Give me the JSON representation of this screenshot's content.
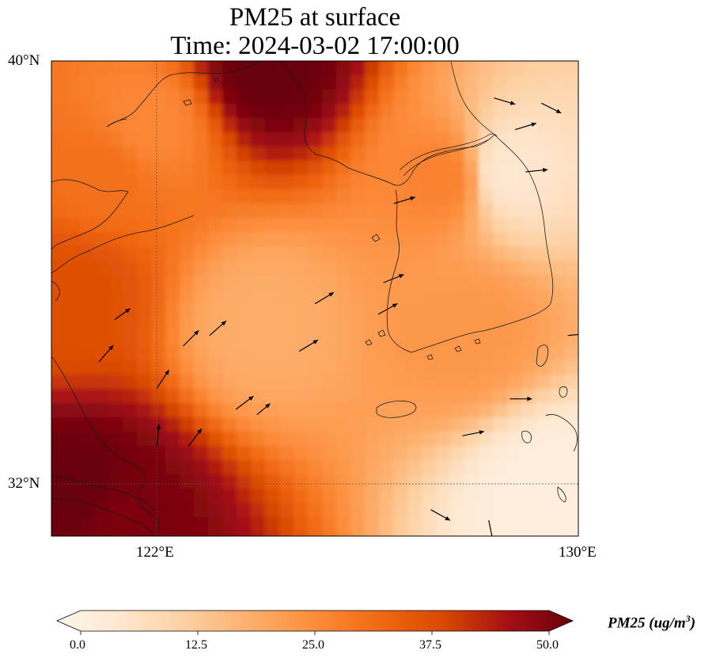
{
  "title": {
    "line1": "PM25 at surface",
    "line2": "Time: 2024-03-02 17:00:00"
  },
  "axes": {
    "lat_labels": [
      "40°N",
      "32°N"
    ],
    "lon_labels": [
      "122°E",
      "130°E"
    ]
  },
  "colorbar": {
    "label_main": "PM25 (ug/m",
    "label_exp": "3",
    "label_end": ")",
    "ticks": [
      "0.0",
      "12.5",
      "25.0",
      "37.5",
      "50.0"
    ],
    "min": 0,
    "max": 50,
    "colors": [
      "#fff5eb",
      "#fee6ce",
      "#fdd0a2",
      "#fdae6b",
      "#fd8d3c",
      "#f16913",
      "#d94801",
      "#a50f15",
      "#67000d"
    ]
  },
  "chart_data": {
    "type": "heatmap",
    "title": "PM25 at surface — Time: 2024-03-02 17:00:00",
    "variable": "PM25 (ug/m3)",
    "lon_range": [
      120,
      130
    ],
    "lat_range": [
      31,
      40
    ],
    "gridlines": {
      "lon": [
        122
      ],
      "lat": [
        32
      ]
    },
    "value_range": [
      0,
      50
    ],
    "field_samples": [
      {
        "lon": 120.5,
        "lat": 31.8,
        "value": 50
      },
      {
        "lon": 121.3,
        "lat": 31.3,
        "value": 48
      },
      {
        "lon": 120.4,
        "lat": 35.6,
        "value": 36
      },
      {
        "lon": 121.0,
        "lat": 37.9,
        "value": 30
      },
      {
        "lon": 124.1,
        "lat": 39.9,
        "value": 50
      },
      {
        "lon": 121.8,
        "lat": 38.8,
        "value": 26
      },
      {
        "lon": 124.0,
        "lat": 35.0,
        "value": 19
      },
      {
        "lon": 128.6,
        "lat": 37.9,
        "value": 6
      },
      {
        "lon": 127.5,
        "lat": 37.8,
        "value": 27
      },
      {
        "lon": 127.8,
        "lat": 34.9,
        "value": 23
      },
      {
        "lon": 129.5,
        "lat": 31.8,
        "value": 3
      }
    ],
    "wind_vectors": [
      {
        "lon": 120.9,
        "lat": 34.3,
        "u": 0.7,
        "v": 0.8
      },
      {
        "lon": 121.2,
        "lat": 35.1,
        "u": 0.7,
        "v": 0.5
      },
      {
        "lon": 122.5,
        "lat": 34.6,
        "u": 0.8,
        "v": 0.8
      },
      {
        "lon": 123.0,
        "lat": 34.8,
        "u": 0.8,
        "v": 0.7
      },
      {
        "lon": 124.7,
        "lat": 34.5,
        "u": 1.0,
        "v": 0.6
      },
      {
        "lon": 123.5,
        "lat": 33.4,
        "u": 0.8,
        "v": 0.6
      },
      {
        "lon": 122.6,
        "lat": 32.7,
        "u": 0.6,
        "v": 0.8
      },
      {
        "lon": 122.0,
        "lat": 33.8,
        "u": 0.6,
        "v": 0.9
      },
      {
        "lon": 122.0,
        "lat": 32.7,
        "u": 0.1,
        "v": 1.0
      },
      {
        "lon": 123.9,
        "lat": 33.3,
        "u": 0.6,
        "v": 0.5
      },
      {
        "lon": 125.0,
        "lat": 35.4,
        "u": 1.0,
        "v": 0.6
      },
      {
        "lon": 126.2,
        "lat": 35.2,
        "u": 0.9,
        "v": 0.5
      },
      {
        "lon": 126.3,
        "lat": 35.8,
        "u": 1.0,
        "v": 0.4
      },
      {
        "lon": 126.5,
        "lat": 37.3,
        "u": 1.0,
        "v": 0.3
      },
      {
        "lon": 128.8,
        "lat": 38.7,
        "u": 1.0,
        "v": 0.3
      },
      {
        "lon": 129.3,
        "lat": 39.2,
        "u": 1.0,
        "v": -0.5
      },
      {
        "lon": 128.4,
        "lat": 39.3,
        "u": 1.0,
        "v": -0.3
      },
      {
        "lon": 129.0,
        "lat": 37.9,
        "u": 1.0,
        "v": 0.1
      },
      {
        "lon": 129.8,
        "lat": 34.8,
        "u": 1.0,
        "v": 0.1
      },
      {
        "lon": 128.7,
        "lat": 33.6,
        "u": 1.0,
        "v": 0.0
      },
      {
        "lon": 127.8,
        "lat": 32.9,
        "u": 1.0,
        "v": 0.2
      },
      {
        "lon": 127.2,
        "lat": 31.5,
        "u": 0.9,
        "v": -0.5
      },
      {
        "lon": 128.3,
        "lat": 31.3,
        "u": 0.2,
        "v": -1.0
      }
    ],
    "boundaries": [
      "coastlines",
      "national borders"
    ]
  }
}
